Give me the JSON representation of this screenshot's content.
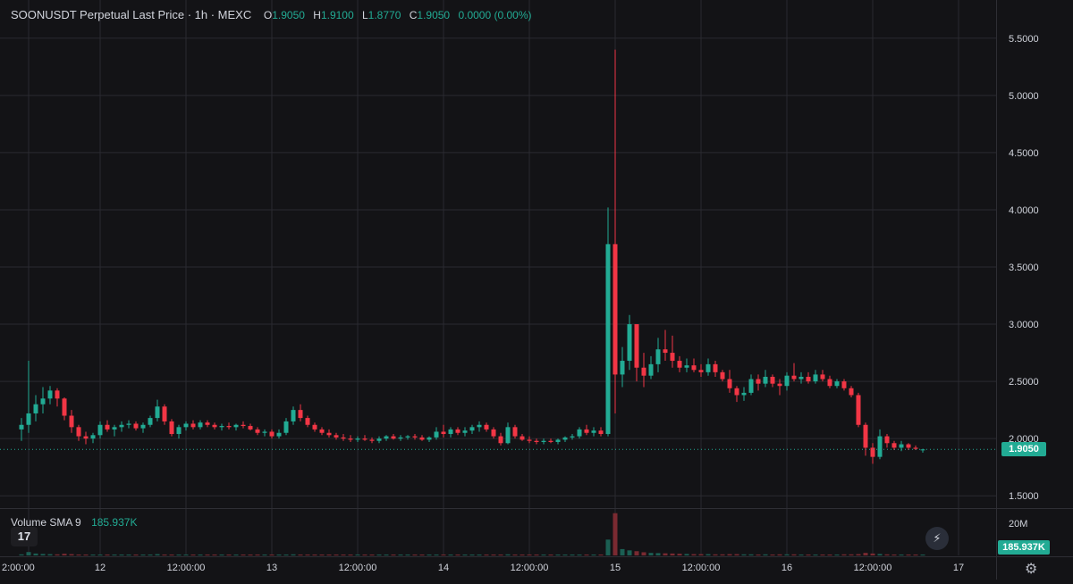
{
  "header": {
    "symbol_title": "SOONUSDT Perpetual Last Price · 1h · MEXC",
    "ohlc": {
      "o_label": "O",
      "o": "1.9050",
      "h_label": "H",
      "h": "1.9100",
      "l_label": "L",
      "l": "1.8770",
      "c_label": "C",
      "c": "1.9050",
      "change": "0.0000 (0.00%)"
    }
  },
  "volume_pane": {
    "label": "Volume SMA 9",
    "value": "185.937K",
    "axis_label": "20M",
    "tag": "185.937K"
  },
  "last_price_tag": "1.9050",
  "logo_text": "17",
  "icons": {
    "logo": "tradingview-logo-icon",
    "bolt": "lightning-bolt-icon",
    "settings": "gear-icon"
  },
  "colors": {
    "background": "#131316",
    "up": "#22ab94",
    "down": "#f23645",
    "grid": "#2a2a30",
    "text": "#d1d4dc"
  },
  "chart_data": {
    "type": "candlestick",
    "ylim": [
      1.4,
      5.6
    ],
    "y_ticks": [
      "5.5000",
      "5.0000",
      "4.5000",
      "4.0000",
      "3.5000",
      "3.0000",
      "2.5000",
      "2.0000",
      "1.5000"
    ],
    "y_tick_values": [
      5.5,
      5.0,
      4.5,
      4.0,
      3.5,
      3.0,
      2.5,
      2.0,
      1.5
    ],
    "x_ticks": [
      "2:00:00",
      "12",
      "12:00:00",
      "13",
      "12:00:00",
      "14",
      "12:00:00",
      "15",
      "12:00:00",
      "16",
      "12:00:00",
      "17"
    ],
    "x_tick_hours": [
      -22,
      -12,
      0,
      12,
      24,
      36,
      48,
      60,
      72,
      84,
      96,
      108
    ],
    "last_price": 1.905,
    "candle_hours_start": -23,
    "candles": [
      [
        2.08,
        2.18,
        1.98,
        2.12
      ],
      [
        2.12,
        2.68,
        2.05,
        2.22
      ],
      [
        2.22,
        2.38,
        2.15,
        2.3
      ],
      [
        2.3,
        2.45,
        2.22,
        2.35
      ],
      [
        2.35,
        2.46,
        2.3,
        2.42
      ],
      [
        2.42,
        2.44,
        2.28,
        2.35
      ],
      [
        2.35,
        2.36,
        2.16,
        2.2
      ],
      [
        2.2,
        2.25,
        2.05,
        2.1
      ],
      [
        2.1,
        2.12,
        1.98,
        2.02
      ],
      [
        2.02,
        2.06,
        1.95,
        2.0
      ],
      [
        2.0,
        2.05,
        1.96,
        2.03
      ],
      [
        2.03,
        2.15,
        2.0,
        2.12
      ],
      [
        2.12,
        2.16,
        2.06,
        2.08
      ],
      [
        2.08,
        2.12,
        2.02,
        2.1
      ],
      [
        2.1,
        2.15,
        2.06,
        2.12
      ],
      [
        2.12,
        2.16,
        2.09,
        2.13
      ],
      [
        2.13,
        2.15,
        2.07,
        2.09
      ],
      [
        2.09,
        2.14,
        2.05,
        2.12
      ],
      [
        2.12,
        2.2,
        2.1,
        2.18
      ],
      [
        2.18,
        2.34,
        2.15,
        2.28
      ],
      [
        2.28,
        2.3,
        2.12,
        2.15
      ],
      [
        2.15,
        2.17,
        2.02,
        2.04
      ],
      [
        2.04,
        2.12,
        2.0,
        2.1
      ],
      [
        2.1,
        2.15,
        2.07,
        2.13
      ],
      [
        2.13,
        2.16,
        2.08,
        2.1
      ],
      [
        2.1,
        2.16,
        2.08,
        2.14
      ],
      [
        2.14,
        2.16,
        2.1,
        2.12
      ],
      [
        2.12,
        2.14,
        2.08,
        2.1
      ],
      [
        2.1,
        2.13,
        2.07,
        2.11
      ],
      [
        2.11,
        2.14,
        2.08,
        2.1
      ],
      [
        2.1,
        2.13,
        2.07,
        2.12
      ],
      [
        2.12,
        2.15,
        2.09,
        2.11
      ],
      [
        2.11,
        2.13,
        2.07,
        2.08
      ],
      [
        2.08,
        2.1,
        2.03,
        2.05
      ],
      [
        2.05,
        2.08,
        2.02,
        2.06
      ],
      [
        2.06,
        2.08,
        2.0,
        2.02
      ],
      [
        2.02,
        2.08,
        2.0,
        2.05
      ],
      [
        2.05,
        2.18,
        2.03,
        2.15
      ],
      [
        2.15,
        2.28,
        2.12,
        2.25
      ],
      [
        2.25,
        2.3,
        2.15,
        2.18
      ],
      [
        2.18,
        2.2,
        2.1,
        2.12
      ],
      [
        2.12,
        2.14,
        2.06,
        2.08
      ],
      [
        2.08,
        2.1,
        2.03,
        2.05
      ],
      [
        2.05,
        2.08,
        2.01,
        2.03
      ],
      [
        2.03,
        2.05,
        1.99,
        2.01
      ],
      [
        2.01,
        2.04,
        1.98,
        2.0
      ],
      [
        2.0,
        2.03,
        1.97,
        1.99
      ],
      [
        1.99,
        2.02,
        1.97,
        2.0
      ],
      [
        2.0,
        2.03,
        1.98,
        1.99
      ],
      [
        1.99,
        2.01,
        1.96,
        1.98
      ],
      [
        1.98,
        2.02,
        1.96,
        2.0
      ],
      [
        2.0,
        2.03,
        1.98,
        2.02
      ],
      [
        2.02,
        2.04,
        1.99,
        2.0
      ],
      [
        2.0,
        2.03,
        1.98,
        2.01
      ],
      [
        2.01,
        2.03,
        1.99,
        2.02
      ],
      [
        2.02,
        2.04,
        1.99,
        2.01
      ],
      [
        2.01,
        2.03,
        1.98,
        1.99
      ],
      [
        1.99,
        2.02,
        1.97,
        2.01
      ],
      [
        2.01,
        2.1,
        1.99,
        2.06
      ],
      [
        2.06,
        2.12,
        2.01,
        2.04
      ],
      [
        2.04,
        2.1,
        2.01,
        2.08
      ],
      [
        2.08,
        2.1,
        2.03,
        2.05
      ],
      [
        2.05,
        2.1,
        2.02,
        2.07
      ],
      [
        2.07,
        2.12,
        2.04,
        2.1
      ],
      [
        2.1,
        2.15,
        2.06,
        2.12
      ],
      [
        2.12,
        2.14,
        2.06,
        2.08
      ],
      [
        2.08,
        2.1,
        2.0,
        2.02
      ],
      [
        2.02,
        2.05,
        1.94,
        1.96
      ],
      [
        1.96,
        2.14,
        1.95,
        2.1
      ],
      [
        2.1,
        2.12,
        2.0,
        2.02
      ],
      [
        2.02,
        2.04,
        1.98,
        1.99
      ],
      [
        1.99,
        2.02,
        1.96,
        1.98
      ],
      [
        1.98,
        2.0,
        1.95,
        1.97
      ],
      [
        1.97,
        2.0,
        1.95,
        1.98
      ],
      [
        1.98,
        2.0,
        1.96,
        1.97
      ],
      [
        1.97,
        2.0,
        1.95,
        1.99
      ],
      [
        1.99,
        2.02,
        1.97,
        2.01
      ],
      [
        2.01,
        2.04,
        1.99,
        2.02
      ],
      [
        2.02,
        2.1,
        2.0,
        2.08
      ],
      [
        2.08,
        2.12,
        2.03,
        2.05
      ],
      [
        2.05,
        2.1,
        2.02,
        2.07
      ],
      [
        2.07,
        2.1,
        2.02,
        2.04
      ],
      [
        2.04,
        4.02,
        2.02,
        3.7
      ],
      [
        3.7,
        5.4,
        2.22,
        2.56
      ],
      [
        2.56,
        2.8,
        2.45,
        2.68
      ],
      [
        2.68,
        3.08,
        2.6,
        3.0
      ],
      [
        3.0,
        3.0,
        2.5,
        2.62
      ],
      [
        2.62,
        2.75,
        2.45,
        2.55
      ],
      [
        2.55,
        2.72,
        2.52,
        2.65
      ],
      [
        2.65,
        2.88,
        2.58,
        2.78
      ],
      [
        2.78,
        2.95,
        2.68,
        2.75
      ],
      [
        2.75,
        2.9,
        2.62,
        2.68
      ],
      [
        2.68,
        2.72,
        2.58,
        2.62
      ],
      [
        2.62,
        2.7,
        2.58,
        2.64
      ],
      [
        2.64,
        2.7,
        2.58,
        2.6
      ],
      [
        2.6,
        2.65,
        2.54,
        2.58
      ],
      [
        2.58,
        2.7,
        2.55,
        2.65
      ],
      [
        2.65,
        2.68,
        2.54,
        2.58
      ],
      [
        2.58,
        2.6,
        2.5,
        2.52
      ],
      [
        2.52,
        2.6,
        2.4,
        2.44
      ],
      [
        2.44,
        2.46,
        2.32,
        2.38
      ],
      [
        2.38,
        2.45,
        2.33,
        2.4
      ],
      [
        2.4,
        2.56,
        2.38,
        2.52
      ],
      [
        2.52,
        2.56,
        2.42,
        2.48
      ],
      [
        2.48,
        2.6,
        2.45,
        2.54
      ],
      [
        2.54,
        2.56,
        2.45,
        2.48
      ],
      [
        2.48,
        2.52,
        2.38,
        2.46
      ],
      [
        2.46,
        2.58,
        2.42,
        2.55
      ],
      [
        2.55,
        2.66,
        2.5,
        2.52
      ],
      [
        2.52,
        2.58,
        2.48,
        2.54
      ],
      [
        2.54,
        2.58,
        2.48,
        2.5
      ],
      [
        2.5,
        2.6,
        2.48,
        2.56
      ],
      [
        2.56,
        2.6,
        2.5,
        2.52
      ],
      [
        2.52,
        2.55,
        2.44,
        2.46
      ],
      [
        2.46,
        2.52,
        2.44,
        2.5
      ],
      [
        2.5,
        2.52,
        2.42,
        2.44
      ],
      [
        2.44,
        2.46,
        2.36,
        2.38
      ],
      [
        2.38,
        2.4,
        2.1,
        2.12
      ],
      [
        2.12,
        2.14,
        1.85,
        1.92
      ],
      [
        1.92,
        1.96,
        1.78,
        1.84
      ],
      [
        1.84,
        2.08,
        1.82,
        2.02
      ],
      [
        2.02,
        2.04,
        1.92,
        1.96
      ],
      [
        1.96,
        1.98,
        1.9,
        1.92
      ],
      [
        1.92,
        1.98,
        1.89,
        1.95
      ],
      [
        1.95,
        1.96,
        1.9,
        1.92
      ],
      [
        1.92,
        1.94,
        1.9,
        1.91
      ],
      [
        1.905,
        1.91,
        1.877,
        1.905
      ]
    ],
    "volume_ylim_max": 22,
    "volume_millions": [
      0.5,
      1.6,
      0.9,
      0.7,
      0.6,
      0.5,
      0.8,
      0.6,
      0.4,
      0.3,
      0.3,
      0.4,
      0.3,
      0.2,
      0.3,
      0.2,
      0.2,
      0.2,
      0.3,
      0.6,
      0.4,
      0.3,
      0.3,
      0.2,
      0.2,
      0.2,
      0.2,
      0.2,
      0.2,
      0.2,
      0.2,
      0.2,
      0.2,
      0.2,
      0.2,
      0.2,
      0.2,
      0.3,
      0.5,
      0.4,
      0.3,
      0.2,
      0.2,
      0.2,
      0.2,
      0.2,
      0.2,
      0.2,
      0.2,
      0.2,
      0.2,
      0.2,
      0.2,
      0.2,
      0.2,
      0.2,
      0.2,
      0.2,
      0.3,
      0.3,
      0.2,
      0.2,
      0.2,
      0.3,
      0.3,
      0.3,
      0.3,
      0.4,
      0.5,
      0.3,
      0.2,
      0.2,
      0.2,
      0.2,
      0.2,
      0.2,
      0.2,
      0.2,
      0.3,
      0.3,
      0.2,
      0.2,
      7.5,
      20.0,
      3.0,
      2.4,
      2.0,
      1.5,
      1.2,
      1.1,
      1.0,
      0.9,
      0.8,
      0.7,
      0.6,
      0.6,
      0.6,
      0.5,
      0.5,
      0.6,
      0.6,
      0.5,
      0.5,
      0.4,
      0.5,
      0.4,
      0.5,
      0.5,
      0.5,
      0.4,
      0.4,
      0.4,
      0.4,
      0.4,
      0.4,
      0.5,
      0.5,
      0.6,
      1.2,
      0.9,
      0.7,
      0.5,
      0.4,
      0.3,
      0.3,
      0.2,
      0.19
    ]
  }
}
